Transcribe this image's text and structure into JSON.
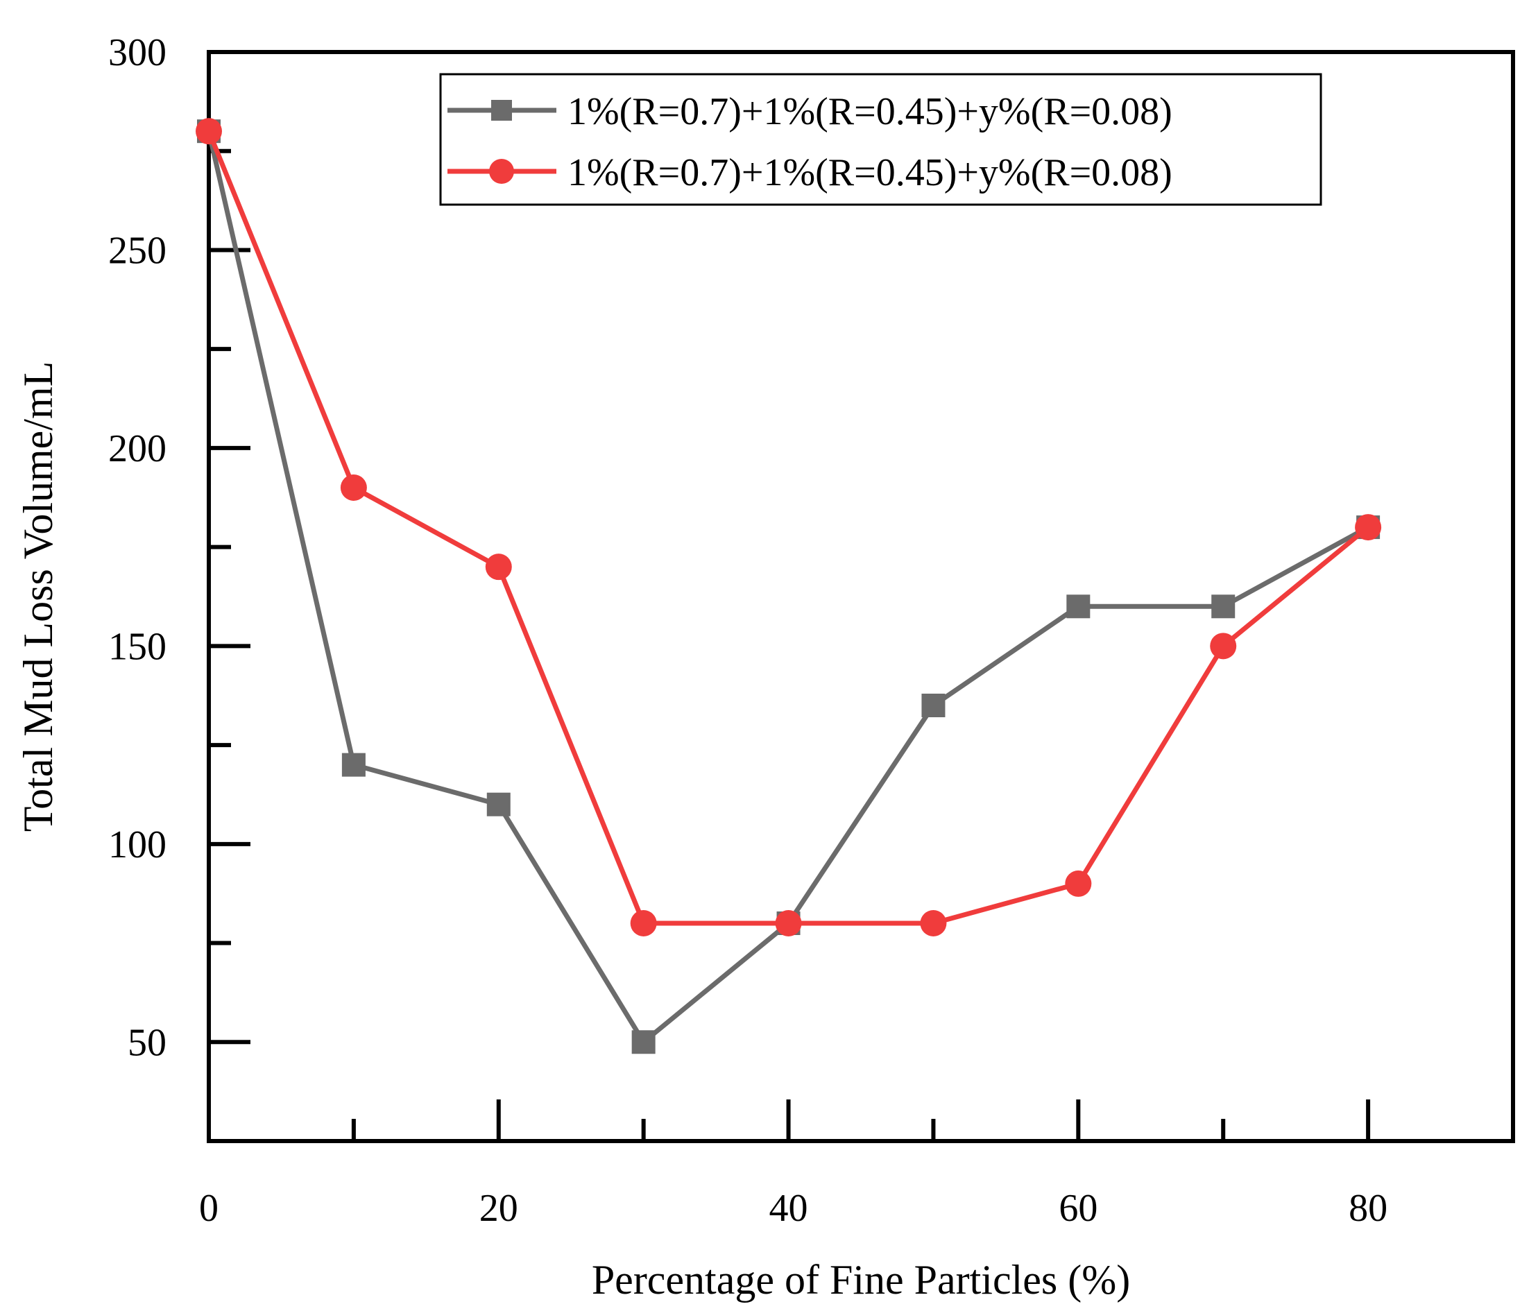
{
  "chart_data": {
    "type": "line",
    "title": "",
    "xlabel": "Percentage of Fine Particles (%)",
    "ylabel": "Total Mud Loss Volume/mL",
    "xlim": [
      0,
      90
    ],
    "ylim": [
      25,
      300
    ],
    "xticks": [
      0,
      20,
      40,
      60,
      80
    ],
    "xticks_minor": [
      10,
      30,
      50,
      70
    ],
    "yticks": [
      50,
      100,
      150,
      200,
      250,
      300
    ],
    "yticks_minor": [
      75,
      125,
      175,
      225,
      275
    ],
    "grid": false,
    "legend_position": "top-right",
    "series": [
      {
        "name": "1%(R=0.7)+1%(R=0.45)+y%(R=0.08)",
        "color": "#6b6b6b",
        "marker": "square",
        "x": [
          0,
          10,
          20,
          30,
          40,
          50,
          60,
          70,
          80
        ],
        "y": [
          280,
          120,
          110,
          50,
          80,
          135,
          160,
          160,
          180
        ]
      },
      {
        "name": "1%(R=0.7)+1%(R=0.45)+y%(R=0.08)",
        "color": "#f03c3c",
        "marker": "circle",
        "x": [
          0,
          10,
          20,
          30,
          40,
          50,
          60,
          70,
          80
        ],
        "y": [
          280,
          190,
          170,
          80,
          80,
          80,
          90,
          150,
          180
        ]
      }
    ]
  }
}
